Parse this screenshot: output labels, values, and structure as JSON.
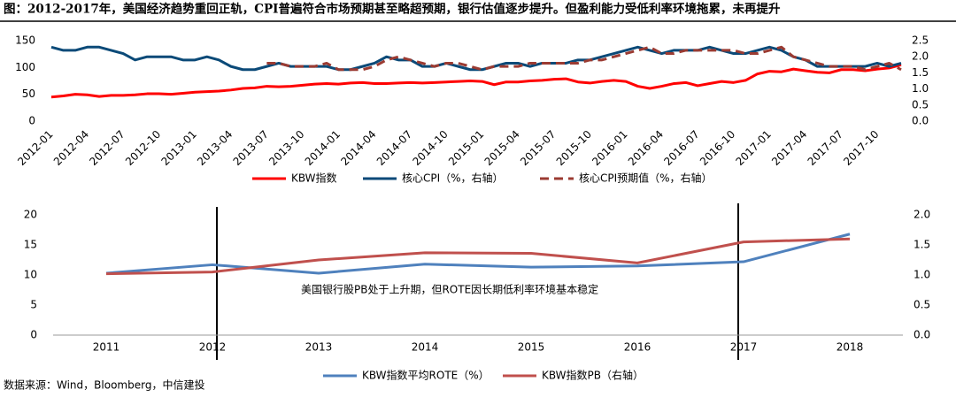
{
  "title": "图：2012-2017年，美国经济趋势重回正轨，CPI普遍符合市场预期甚至略超预期，银行估值逐步提升。但盈利能力受低利率环境拖累，未再提升",
  "source": "数据来源：Wind，Bloomberg，中信建投",
  "chart_data": [
    {
      "type": "line",
      "legend": "bottom",
      "grid": false,
      "categories": [
        "2012-01",
        null,
        null,
        "2012-04",
        null,
        null,
        "2012-07",
        null,
        null,
        "2012-10",
        null,
        null,
        "2013-01",
        null,
        null,
        "2013-04",
        null,
        null,
        "2013-07",
        null,
        null,
        "2013-10",
        null,
        null,
        "2014-01",
        null,
        null,
        "2014-04",
        null,
        null,
        "2014-07",
        null,
        null,
        "2014-10",
        null,
        null,
        "2015-01",
        null,
        null,
        "2015-04",
        null,
        null,
        "2015-07",
        null,
        null,
        "2015-10",
        null,
        null,
        "2016-01",
        null,
        null,
        "2016-04",
        null,
        null,
        "2016-07",
        null,
        null,
        "2016-10",
        null,
        null,
        "2017-01",
        null,
        null,
        "2017-04",
        null,
        null,
        "2017-07",
        null,
        null,
        "2017-10",
        null,
        null
      ],
      "ylim": [
        0,
        150
      ],
      "yticks": [
        0,
        50,
        100,
        150
      ],
      "y2lim": [
        0,
        2.5
      ],
      "y2ticks": [
        {
          "value": 0,
          "label": "0.0"
        },
        0.5,
        {
          "value": 1,
          "label": "1.0"
        },
        1.5,
        {
          "value": 2,
          "label": "2.0"
        },
        2.5
      ],
      "series": [
        {
          "name": "KBW指数",
          "color": "#ff0000",
          "line_style": "solid",
          "values": [
            45,
            47,
            50,
            49,
            46,
            48,
            48,
            49,
            51,
            51,
            50,
            52,
            54,
            55,
            56,
            58,
            61,
            62,
            65,
            64,
            65,
            67,
            69,
            70,
            69,
            71,
            72,
            70,
            70,
            71,
            72,
            71,
            72,
            73,
            74,
            75,
            74,
            68,
            73,
            73,
            75,
            76,
            78,
            79,
            73,
            71,
            74,
            76,
            74,
            65,
            61,
            65,
            70,
            72,
            66,
            70,
            74,
            72,
            76,
            88,
            93,
            92,
            97,
            94,
            91,
            90,
            96,
            96,
            94,
            97,
            99,
            105
          ]
        },
        {
          "name": "核心CPI（%，右轴）",
          "color": "#0b4a78",
          "line_style": "solid",
          "axis": "y2",
          "values": [
            2.3,
            2.2,
            2.2,
            2.3,
            2.3,
            2.2,
            2.1,
            1.9,
            2.0,
            2.0,
            2.0,
            1.9,
            1.9,
            2.0,
            1.9,
            1.7,
            1.6,
            1.6,
            1.7,
            1.8,
            1.7,
            1.7,
            1.7,
            1.7,
            1.6,
            1.6,
            1.7,
            1.8,
            2.0,
            1.9,
            1.9,
            1.7,
            1.7,
            1.8,
            1.7,
            1.6,
            1.6,
            1.7,
            1.8,
            1.8,
            1.7,
            1.8,
            1.8,
            1.8,
            1.9,
            1.9,
            2.0,
            2.1,
            2.2,
            2.3,
            2.2,
            2.1,
            2.2,
            2.2,
            2.2,
            2.3,
            2.2,
            2.1,
            2.1,
            2.2,
            2.3,
            2.2,
            2.0,
            1.9,
            1.7,
            1.7,
            1.7,
            1.7,
            1.7,
            1.8,
            1.7,
            1.8
          ]
        },
        {
          "name": "核心CPI预期值（%，右轴）",
          "color": "#9b3b32",
          "line_style": "dashed",
          "axis": "y2",
          "values": [
            null,
            null,
            null,
            null,
            null,
            null,
            null,
            null,
            null,
            null,
            null,
            null,
            null,
            null,
            null,
            null,
            null,
            null,
            1.8,
            1.8,
            1.7,
            1.7,
            1.7,
            1.8,
            1.6,
            1.6,
            1.6,
            1.7,
            1.9,
            2.0,
            1.9,
            1.8,
            1.7,
            1.8,
            1.8,
            1.7,
            1.6,
            1.7,
            1.7,
            1.7,
            1.8,
            1.8,
            1.8,
            1.8,
            1.8,
            1.9,
            1.9,
            2.0,
            2.1,
            2.2,
            2.3,
            2.1,
            2.1,
            2.2,
            2.2,
            2.2,
            2.2,
            2.2,
            2.1,
            2.1,
            2.2,
            2.3,
            2.0,
            1.9,
            1.8,
            1.7,
            1.7,
            1.7,
            1.6,
            1.7,
            1.8,
            1.6
          ]
        }
      ]
    },
    {
      "type": "line",
      "legend": "bottom",
      "grid": false,
      "categories": [
        "2011",
        "2012",
        "2013",
        "2014",
        "2015",
        "2016",
        "2017",
        "2018"
      ],
      "ylim": [
        0,
        20
      ],
      "yticks": [
        0,
        5,
        10,
        15,
        20
      ],
      "y2lim": [
        0,
        2
      ],
      "y2ticks": [
        {
          "value": 0,
          "label": "0.0"
        },
        0.5,
        {
          "value": 1,
          "label": "1.0"
        },
        1.5,
        {
          "value": 2,
          "label": "2.0"
        }
      ],
      "annotation": "美国银行股PB处于上升期，但ROTE因长期低利率环境基本稳定",
      "series": [
        {
          "name": "KBW指数平均ROTE（%）",
          "color": "#4f81bd",
          "line_style": "solid",
          "values": [
            10.3,
            11.7,
            10.3,
            11.8,
            11.3,
            11.5,
            12.2,
            16.8
          ]
        },
        {
          "name": "KBW指数PB（右轴）",
          "color": "#c0504d",
          "line_style": "solid",
          "axis": "y2",
          "values": [
            1.02,
            1.05,
            1.25,
            1.37,
            1.36,
            1.2,
            1.55,
            1.6
          ]
        }
      ]
    }
  ]
}
